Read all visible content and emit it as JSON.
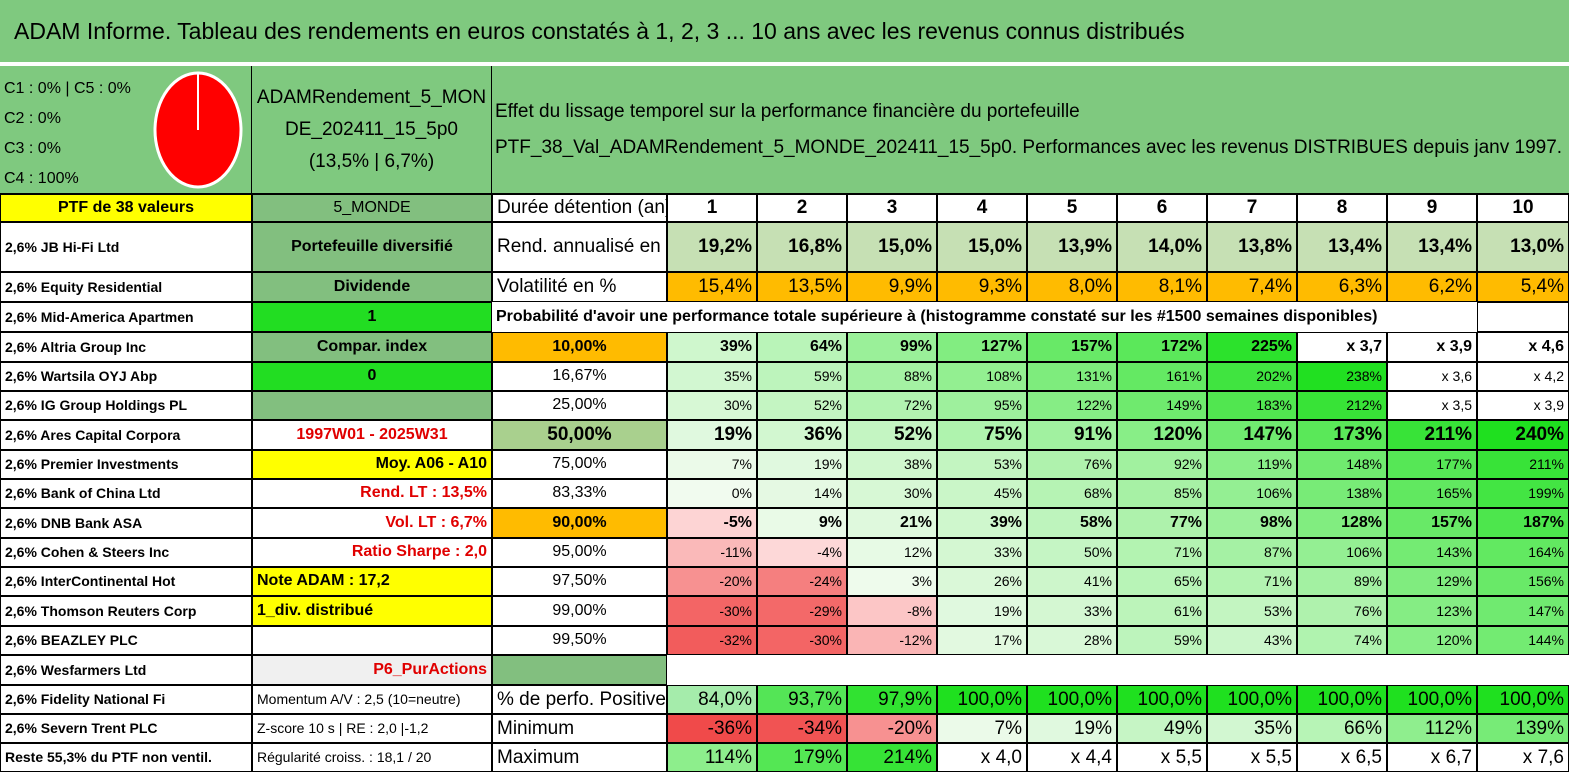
{
  "title": "ADAM Informe. Tableau des rendements en euros constatés à 1, 2, 3 ... 10 ans avec les revenus connus distribués",
  "classes": [
    "C1 : 0% | C5 : 0%",
    "C2 : 0%",
    "C3 : 0%",
    "C4 : 100%"
  ],
  "pie": {
    "fill_color": "#ff0000",
    "label": "C4 : 100%"
  },
  "fund": {
    "name_line1": "ADAMRendement_5_MON",
    "name_line2": "DE_202411_15_5p0",
    "perf": "(13,5% | 6,7%)"
  },
  "effect": {
    "line1": "Effet du lissage temporel sur la performance financière du portefeuille",
    "line2": "PTF_38_Val_ADAMRendement_5_MONDE_202411_15_5p0. Performances avec les revenus DISTRIBUES depuis janv 1997."
  },
  "ptf_label": "PTF de 38 valeurs",
  "region": "5_MONDE",
  "duration_label": "Durée détention (an)",
  "years": [
    "1",
    "2",
    "3",
    "4",
    "5",
    "6",
    "7",
    "8",
    "9",
    "10"
  ],
  "rend_label": "Rend. annualisé en %",
  "rend": [
    "19,2%",
    "16,8%",
    "15,0%",
    "15,0%",
    "13,9%",
    "14,0%",
    "13,8%",
    "13,4%",
    "13,4%",
    "13,0%"
  ],
  "vol_label": "Volatilité en %",
  "vol": [
    "15,4%",
    "13,5%",
    "9,9%",
    "9,3%",
    "8,0%",
    "8,1%",
    "7,4%",
    "6,3%",
    "6,2%",
    "5,4%"
  ],
  "prob_label": "Probabilité d'avoir une performance totale supérieure à (histogramme constaté sur les #1500 semaines disponibles)",
  "holdings": [
    "2,6% JB Hi-Fi Ltd",
    "2,6% Equity Residential",
    "2,6% Mid-America Apartmen",
    "2,6% Altria Group Inc",
    "2,6% Wartsila OYJ Abp",
    "2,6% IG Group Holdings PL",
    "2,6% Ares Capital Corpora",
    "2,6% Premier Investments",
    "2,6% Bank of China Ltd",
    "2,6% DNB Bank ASA",
    "2,6% Cohen & Steers Inc",
    "2,6% InterContinental Hot",
    "2,6% Thomson Reuters Corp",
    "2,6% BEAZLEY PLC",
    "2,6% Wesfarmers Ltd",
    "2,6% Fidelity National Fi",
    "2,6% Severn Trent PLC",
    "Reste 55,3% du PTF non ventil."
  ],
  "side": {
    "portfolio": "Portefeuille diversifié",
    "dividende": "Dividende",
    "one": "1",
    "compar": "Compar. index",
    "zero": "0",
    "period": "1997W01 - 2025W31",
    "moy": "Moy. A06 - A10",
    "rend_lt": "Rend. LT : 13,5%",
    "vol_lt": "Vol. LT : 6,7%",
    "sharpe": "Ratio Sharpe : 2,0",
    "note": "Note ADAM : 17,2",
    "div": "1_div. distribué",
    "pur": "P6_PurActions",
    "momentum": "Momentum A/V : 2,5 (10=neutre)",
    "zscore": "Z-score 10 s | RE : 2,0 |-1,2",
    "regul": "Régularité croiss. : 18,1 / 20"
  },
  "prob_rows": [
    {
      "p": "10,00%",
      "vals": [
        "39%",
        "64%",
        "99%",
        "127%",
        "157%",
        "172%",
        "225%",
        "x 3,7",
        "x 3,9",
        "x 4,6"
      ]
    },
    {
      "p": "16,67%",
      "vals": [
        "35%",
        "59%",
        "88%",
        "108%",
        "131%",
        "161%",
        "202%",
        "238%",
        "x 3,6",
        "x 4,2"
      ]
    },
    {
      "p": "25,00%",
      "vals": [
        "30%",
        "52%",
        "72%",
        "95%",
        "122%",
        "149%",
        "183%",
        "212%",
        "x 3,5",
        "x 3,9"
      ]
    },
    {
      "p": "50,00%",
      "vals": [
        "19%",
        "36%",
        "52%",
        "75%",
        "91%",
        "120%",
        "147%",
        "173%",
        "211%",
        "240%"
      ]
    },
    {
      "p": "75,00%",
      "vals": [
        "7%",
        "19%",
        "38%",
        "53%",
        "76%",
        "92%",
        "119%",
        "148%",
        "177%",
        "211%"
      ]
    },
    {
      "p": "83,33%",
      "vals": [
        "0%",
        "14%",
        "30%",
        "45%",
        "68%",
        "85%",
        "106%",
        "138%",
        "165%",
        "199%"
      ]
    },
    {
      "p": "90,00%",
      "vals": [
        "-5%",
        "9%",
        "21%",
        "39%",
        "58%",
        "77%",
        "98%",
        "128%",
        "157%",
        "187%"
      ]
    },
    {
      "p": "95,00%",
      "vals": [
        "-11%",
        "-4%",
        "12%",
        "33%",
        "50%",
        "71%",
        "87%",
        "106%",
        "143%",
        "164%"
      ]
    },
    {
      "p": "97,50%",
      "vals": [
        "-20%",
        "-24%",
        "3%",
        "26%",
        "41%",
        "65%",
        "71%",
        "89%",
        "129%",
        "156%"
      ]
    },
    {
      "p": "99,00%",
      "vals": [
        "-30%",
        "-29%",
        "-8%",
        "19%",
        "33%",
        "61%",
        "53%",
        "76%",
        "123%",
        "147%"
      ]
    },
    {
      "p": "99,50%",
      "vals": [
        "-32%",
        "-30%",
        "-12%",
        "17%",
        "28%",
        "59%",
        "43%",
        "74%",
        "120%",
        "144%"
      ]
    }
  ],
  "pos_label": "% de perfo. Positives",
  "pos": [
    "84,0%",
    "93,7%",
    "97,9%",
    "100,0%",
    "100,0%",
    "100,0%",
    "100,0%",
    "100,0%",
    "100,0%",
    "100,0%"
  ],
  "min_label": "Minimum",
  "min": [
    "-36%",
    "-34%",
    "-20%",
    "7%",
    "19%",
    "49%",
    "35%",
    "66%",
    "112%",
    "139%"
  ],
  "max_label": "Maximum",
  "max": [
    "114%",
    "179%",
    "214%",
    "x 4,0",
    "x 4,4",
    "x 5,5",
    "x 5,5",
    "x 6,5",
    "x 6,7",
    "x 7,6"
  ]
}
